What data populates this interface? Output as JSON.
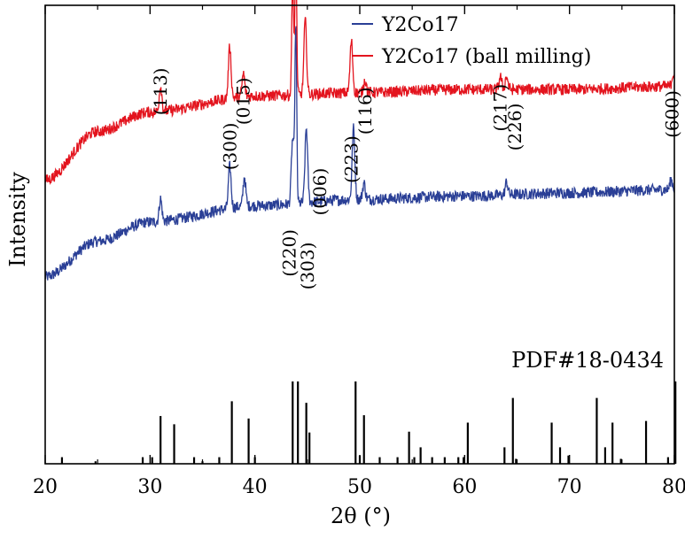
{
  "chart_data": {
    "type": "line",
    "xlabel": "2θ (°)",
    "ylabel": "Intensity",
    "xlim": [
      20,
      80
    ],
    "x_ticks": [
      "20",
      "30",
      "40",
      "50",
      "60",
      "70",
      "80"
    ],
    "legend": {
      "position": "top-right",
      "entries": [
        {
          "text": "Y2Co17",
          "color": "#2a3f96"
        },
        {
          "text": "Y2Co17 (ball milling)",
          "color": "#e3141e"
        }
      ]
    },
    "series": [
      {
        "name": "Y2Co17",
        "color": "#2a3f96",
        "baseline": [
          [
            20,
            0.28
          ],
          [
            25,
            0.39
          ],
          [
            30,
            0.45
          ],
          [
            40,
            0.5
          ],
          [
            50,
            0.52
          ],
          [
            60,
            0.53
          ],
          [
            70,
            0.54
          ],
          [
            80,
            0.55
          ]
        ],
        "peaks": [
          [
            31.0,
            0.07
          ],
          [
            37.6,
            0.13
          ],
          [
            39.0,
            0.09
          ],
          [
            43.6,
            0.2
          ],
          [
            43.9,
            0.55
          ],
          [
            44.9,
            0.23
          ],
          [
            49.4,
            0.22
          ],
          [
            50.4,
            0.05
          ],
          [
            64.0,
            0.04
          ],
          [
            79.7,
            0.03
          ]
        ]
      },
      {
        "name": "Y2Co17 (ball milling)",
        "color": "#e3141e",
        "baseline": [
          [
            20,
            0.58
          ],
          [
            25,
            0.73
          ],
          [
            30,
            0.79
          ],
          [
            40,
            0.84
          ],
          [
            50,
            0.85
          ],
          [
            60,
            0.86
          ],
          [
            70,
            0.86
          ],
          [
            80,
            0.87
          ]
        ],
        "peaks": [
          [
            31.0,
            0.08
          ],
          [
            37.6,
            0.16
          ],
          [
            38.9,
            0.07
          ],
          [
            43.6,
            0.37
          ],
          [
            43.9,
            0.44
          ],
          [
            44.8,
            0.23
          ],
          [
            49.2,
            0.16
          ],
          [
            50.5,
            0.04
          ],
          [
            63.4,
            0.04
          ],
          [
            64.0,
            0.04
          ],
          [
            79.9,
            0.04
          ]
        ]
      }
    ],
    "peak_labels": [
      {
        "text": "(113)",
        "x": 31.0,
        "level": 0.78
      },
      {
        "text": "(300)",
        "x": 37.6,
        "level": 0.61
      },
      {
        "text": "(015)",
        "x": 38.9,
        "level": 0.75
      },
      {
        "text": "(220)",
        "x": 43.3,
        "level": 0.28
      },
      {
        "text": "(303)",
        "x": 45.0,
        "level": 0.24
      },
      {
        "text": "(006)",
        "x": 46.2,
        "level": 0.47
      },
      {
        "text": "(223)",
        "x": 49.2,
        "level": 0.57
      },
      {
        "text": "(116)",
        "x": 50.5,
        "level": 0.72
      },
      {
        "text": "(217)",
        "x": 63.4,
        "level": 0.73
      },
      {
        "text": "(226)",
        "x": 64.8,
        "level": 0.67
      },
      {
        "text": "(600)",
        "x": 79.8,
        "level": 0.71
      }
    ],
    "reference": {
      "label": "PDF#18-0434",
      "lines": [
        [
          21.6,
          0.08
        ],
        [
          24.8,
          0.03
        ],
        [
          29.3,
          0.08
        ],
        [
          30.2,
          0.08
        ],
        [
          31.0,
          0.58
        ],
        [
          32.3,
          0.48
        ],
        [
          34.2,
          0.08
        ],
        [
          35.0,
          0.03
        ],
        [
          36.6,
          0.08
        ],
        [
          37.8,
          0.76
        ],
        [
          39.4,
          0.55
        ],
        [
          40.0,
          0.08
        ],
        [
          43.6,
          1.0
        ],
        [
          44.1,
          1.0
        ],
        [
          44.9,
          0.74
        ],
        [
          45.2,
          0.38
        ],
        [
          49.6,
          1.0
        ],
        [
          50.0,
          0.1
        ],
        [
          50.4,
          0.59
        ],
        [
          51.9,
          0.08
        ],
        [
          53.6,
          0.08
        ],
        [
          54.7,
          0.39
        ],
        [
          55.2,
          0.08
        ],
        [
          55.8,
          0.2
        ],
        [
          56.9,
          0.08
        ],
        [
          58.1,
          0.08
        ],
        [
          59.4,
          0.08
        ],
        [
          59.9,
          0.08
        ],
        [
          60.3,
          0.5
        ],
        [
          63.8,
          0.2
        ],
        [
          64.6,
          0.8
        ],
        [
          64.9,
          0.06
        ],
        [
          68.3,
          0.5
        ],
        [
          69.1,
          0.2
        ],
        [
          69.9,
          0.1
        ],
        [
          72.6,
          0.8
        ],
        [
          73.4,
          0.2
        ],
        [
          74.1,
          0.5
        ],
        [
          74.9,
          0.06
        ],
        [
          77.3,
          0.52
        ],
        [
          79.4,
          0.08
        ],
        [
          80.1,
          1.0
        ]
      ]
    }
  }
}
